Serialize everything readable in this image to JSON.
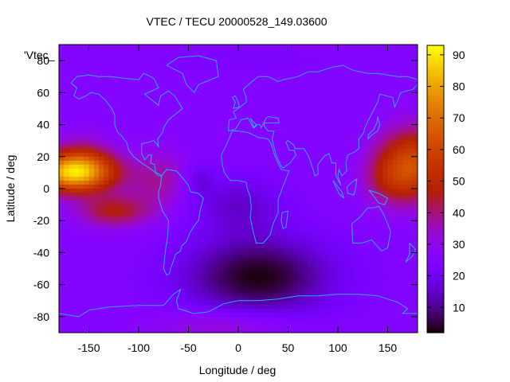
{
  "chart_data": {
    "type": "heatmap",
    "title": "VTEC / TECU 20000528_149.03600",
    "xlabel": "Longitude / deg",
    "ylabel": "Latitude / deg",
    "xlim": [
      -180,
      180
    ],
    "ylim": [
      -90,
      90
    ],
    "x_ticks": [
      -150,
      -100,
      -50,
      0,
      50,
      100,
      150
    ],
    "y_ticks": [
      -80,
      -60,
      -40,
      -20,
      0,
      20,
      40,
      60,
      80
    ],
    "legend_entries": [
      "'Vtec_"
    ],
    "colorbar": {
      "min": 2,
      "max": 93,
      "ticks": [
        10,
        20,
        30,
        40,
        50,
        60,
        70,
        80,
        90
      ],
      "palette": "gnuplot"
    },
    "features": [
      {
        "name": "equatorial-anomaly-pacific",
        "lon": -155,
        "lat": 10,
        "peak": 90
      },
      {
        "name": "equatorial-anomaly-west-pacific",
        "lon": 165,
        "lat": 15,
        "peak": 65
      },
      {
        "name": "southern-minimum",
        "lon": 20,
        "lat": -55,
        "trough": 3
      }
    ],
    "grid": false
  },
  "colors": {
    "coastline": "#33a4ff",
    "axis": "#000000"
  }
}
